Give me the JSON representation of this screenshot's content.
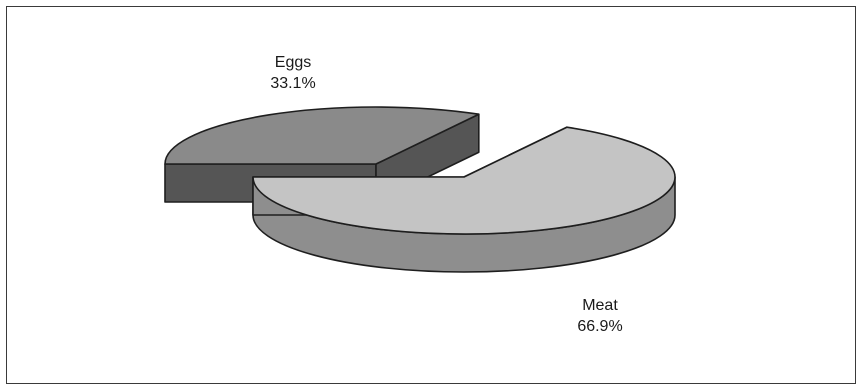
{
  "chart_data": {
    "type": "pie",
    "style": "3d-exploded",
    "slices": [
      {
        "label": "Eggs",
        "value": 33.1,
        "value_label": "33.1%",
        "color_top": "#8a8a8a",
        "color_side": "#555555"
      },
      {
        "label": "Meat",
        "value": 66.9,
        "value_label": "66.9%",
        "color_top": "#c4c4c4",
        "color_side": "#8e8e8e"
      }
    ],
    "title": "",
    "legend": "none"
  }
}
